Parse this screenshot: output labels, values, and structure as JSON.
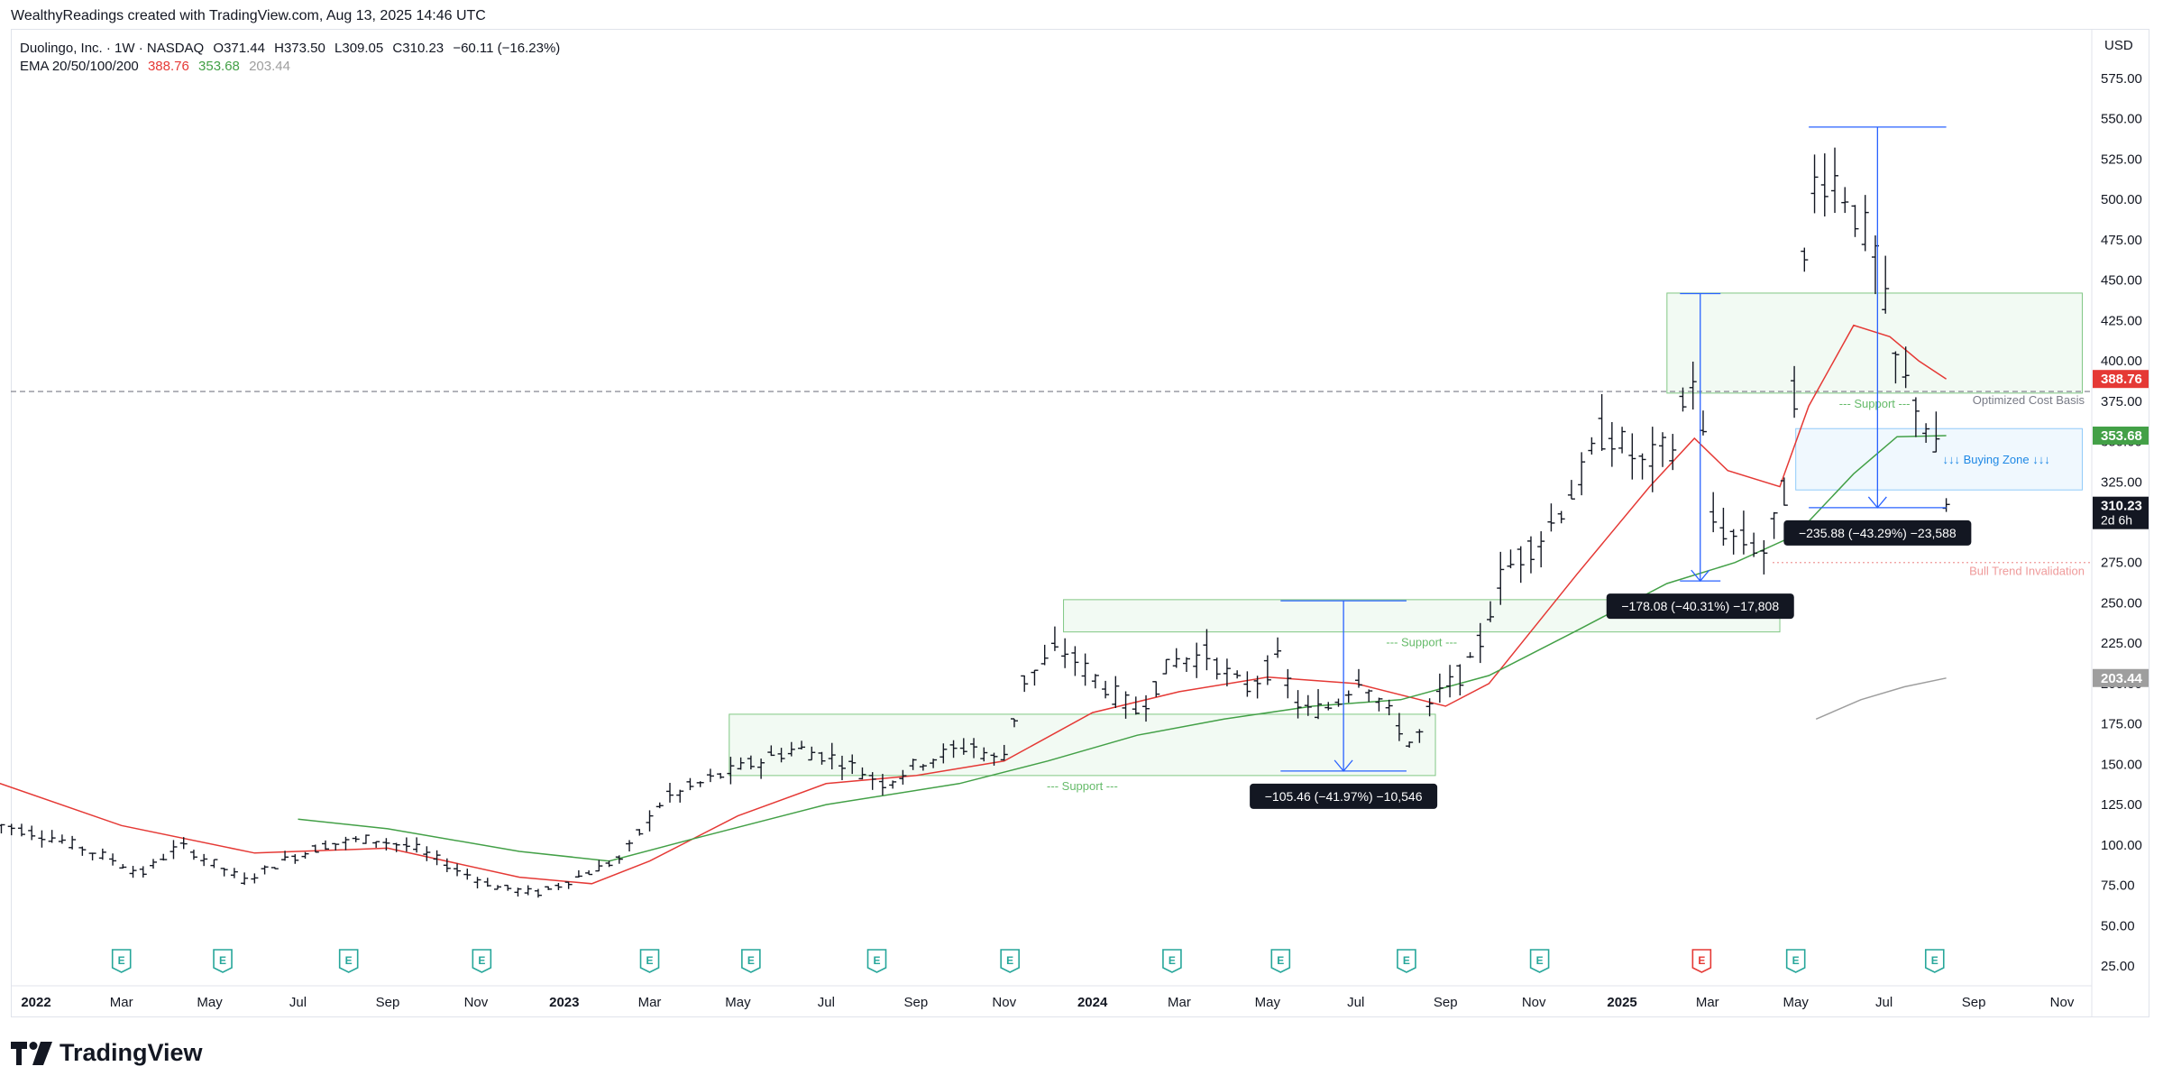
{
  "header": {
    "attribution": "WealthyReadings created with TradingView.com, Aug 13, 2025 14:46 UTC"
  },
  "legend": {
    "symbol_line": "Duolingo, Inc. · 1W · NASDAQ",
    "open": "O371.44",
    "high": "H373.50",
    "low": "L309.05",
    "close": "C310.23",
    "change": "−60.11 (−16.23%)",
    "ema_label": "EMA 20/50/100/200",
    "ema_values": [
      "388.76",
      "353.68",
      "203.44"
    ]
  },
  "currency": "USD",
  "footer": {
    "brand": "TradingView"
  },
  "colors": {
    "ema20": "#e53935",
    "ema50": "#43a047",
    "ema100": "#9e9e9e",
    "measure": "#2962ff",
    "zone_green": "#e8f5e9",
    "zone_blue": "#e3f2fd"
  },
  "chart_data": {
    "type": "ohlc-bar",
    "title": "Duolingo, Inc. · 1W · NASDAQ",
    "ylim": [
      25,
      585
    ],
    "y_ticks": [
      "575.00",
      "550.00",
      "525.00",
      "500.00",
      "475.00",
      "450.00",
      "425.00",
      "400.00",
      "375.00",
      "350.00",
      "325.00",
      "300.00",
      "275.00",
      "250.00",
      "225.00",
      "200.00",
      "175.00",
      "150.00",
      "125.00",
      "100.00",
      "75.00",
      "50.00",
      "25.00"
    ],
    "y_tick_values": [
      575,
      550,
      525,
      500,
      475,
      450,
      425,
      400,
      375,
      350,
      325,
      300,
      275,
      250,
      225,
      200,
      175,
      150,
      125,
      100,
      75,
      50,
      25
    ],
    "x_labels": [
      "2022",
      "Mar",
      "May",
      "Jul",
      "Sep",
      "Nov",
      "2023",
      "Mar",
      "May",
      "Jul",
      "Sep",
      "Nov",
      "2024",
      "Mar",
      "May",
      "Jul",
      "Sep",
      "Nov",
      "2025",
      "Mar",
      "May",
      "Jul",
      "Sep",
      "Nov"
    ],
    "x_label_dates": [
      "2022-01-01",
      "2022-03-01",
      "2022-05-01",
      "2022-07-01",
      "2022-09-01",
      "2022-11-01",
      "2023-01-01",
      "2023-03-01",
      "2023-05-01",
      "2023-07-01",
      "2023-09-01",
      "2023-11-01",
      "2024-01-01",
      "2024-03-01",
      "2024-05-01",
      "2024-07-01",
      "2024-09-01",
      "2024-11-01",
      "2025-01-01",
      "2025-03-01",
      "2025-05-01",
      "2025-07-01",
      "2025-09-01",
      "2025-11-01"
    ],
    "price_anchors": [
      [
        "2021-12-01",
        114
      ],
      [
        "2022-01-15",
        104
      ],
      [
        "2022-02-20",
        92
      ],
      [
        "2022-03-15",
        82
      ],
      [
        "2022-04-10",
        100
      ],
      [
        "2022-05-05",
        88
      ],
      [
        "2022-05-25",
        78
      ],
      [
        "2022-06-20",
        90
      ],
      [
        "2022-07-20",
        100
      ],
      [
        "2022-08-20",
        104
      ],
      [
        "2022-09-20",
        98
      ],
      [
        "2022-10-20",
        84
      ],
      [
        "2022-11-15",
        74
      ],
      [
        "2022-12-15",
        70
      ],
      [
        "2023-01-10",
        80
      ],
      [
        "2023-02-10",
        92
      ],
      [
        "2023-03-10",
        128
      ],
      [
        "2023-04-10",
        140
      ],
      [
        "2023-05-10",
        150
      ],
      [
        "2023-06-10",
        160
      ],
      [
        "2023-07-10",
        153
      ],
      [
        "2023-08-10",
        138
      ],
      [
        "2023-09-05",
        152
      ],
      [
        "2023-10-10",
        162
      ],
      [
        "2023-10-30",
        150
      ],
      [
        "2023-11-15",
        202
      ],
      [
        "2023-12-10",
        222
      ],
      [
        "2024-01-10",
        198
      ],
      [
        "2024-02-01",
        182
      ],
      [
        "2024-02-25",
        214
      ],
      [
        "2024-03-20",
        218
      ],
      [
        "2024-04-15",
        196
      ],
      [
        "2024-05-08",
        214
      ],
      [
        "2024-05-25",
        182
      ],
      [
        "2024-06-15",
        186
      ],
      [
        "2024-07-05",
        206
      ],
      [
        "2024-07-25",
        180
      ],
      [
        "2024-08-10",
        160
      ],
      [
        "2024-08-25",
        192
      ],
      [
        "2024-09-20",
        212
      ],
      [
        "2024-10-10",
        268
      ],
      [
        "2024-11-10",
        295
      ],
      [
        "2024-12-05",
        330
      ],
      [
        "2024-12-20",
        358
      ],
      [
        "2025-01-15",
        335
      ],
      [
        "2025-02-05",
        348
      ],
      [
        "2025-02-20",
        395
      ],
      [
        "2025-03-05",
        300
      ],
      [
        "2025-03-20",
        290
      ],
      [
        "2025-04-10",
        282
      ],
      [
        "2025-04-25",
        322
      ],
      [
        "2025-05-05",
        440
      ],
      [
        "2025-05-15",
        518
      ],
      [
        "2025-06-01",
        512
      ],
      [
        "2025-06-25",
        465
      ],
      [
        "2025-07-10",
        395
      ],
      [
        "2025-07-25",
        372
      ],
      [
        "2025-08-05",
        348
      ],
      [
        "2025-08-13",
        310.23
      ]
    ],
    "ema_series": [
      {
        "name": "EMA 20",
        "color": "#e53935",
        "points": [
          [
            "2021-12-01",
            140
          ],
          [
            "2022-03-01",
            112
          ],
          [
            "2022-06-01",
            95
          ],
          [
            "2022-09-01",
            98
          ],
          [
            "2022-12-01",
            80
          ],
          [
            "2023-01-20",
            76
          ],
          [
            "2023-03-01",
            90
          ],
          [
            "2023-05-01",
            118
          ],
          [
            "2023-07-01",
            138
          ],
          [
            "2023-09-01",
            143
          ],
          [
            "2023-11-01",
            152
          ],
          [
            "2024-01-01",
            182
          ],
          [
            "2024-03-01",
            195
          ],
          [
            "2024-05-01",
            204
          ],
          [
            "2024-07-01",
            200
          ],
          [
            "2024-09-01",
            186
          ],
          [
            "2024-10-01",
            200
          ],
          [
            "2024-12-01",
            268
          ],
          [
            "2025-01-20",
            322
          ],
          [
            "2025-02-20",
            352
          ],
          [
            "2025-03-15",
            332
          ],
          [
            "2025-04-20",
            322
          ],
          [
            "2025-05-10",
            372
          ],
          [
            "2025-06-10",
            422
          ],
          [
            "2025-07-05",
            415
          ],
          [
            "2025-07-25",
            400
          ],
          [
            "2025-08-13",
            388.76
          ]
        ]
      },
      {
        "name": "EMA 50",
        "color": "#43a047",
        "points": [
          [
            "2022-07-01",
            116
          ],
          [
            "2022-09-01",
            110
          ],
          [
            "2022-12-01",
            96
          ],
          [
            "2023-02-01",
            90
          ],
          [
            "2023-04-01",
            104
          ],
          [
            "2023-07-01",
            125
          ],
          [
            "2023-10-01",
            138
          ],
          [
            "2023-12-01",
            152
          ],
          [
            "2024-02-01",
            168
          ],
          [
            "2024-04-01",
            178
          ],
          [
            "2024-06-01",
            186
          ],
          [
            "2024-08-01",
            190
          ],
          [
            "2024-10-01",
            205
          ],
          [
            "2024-12-01",
            233
          ],
          [
            "2025-02-01",
            262
          ],
          [
            "2025-03-20",
            275
          ],
          [
            "2025-05-01",
            292
          ],
          [
            "2025-06-10",
            330
          ],
          [
            "2025-07-10",
            353
          ],
          [
            "2025-08-13",
            353.68
          ]
        ]
      },
      {
        "name": "EMA 100",
        "color": "#9e9e9e",
        "points": [
          [
            "2025-05-15",
            178
          ],
          [
            "2025-06-15",
            190
          ],
          [
            "2025-07-15",
            198
          ],
          [
            "2025-08-13",
            203.44
          ]
        ]
      }
    ],
    "zones": [
      {
        "label": "--- Support ---",
        "from": "2023-04-25",
        "to": "2024-08-25",
        "low": 143,
        "high": 181
      },
      {
        "label": "--- Support ---",
        "from": "2023-12-12",
        "to": "2025-04-20",
        "low": 232,
        "high": 252
      },
      {
        "label": "--- Support ---",
        "from": "2025-02-01",
        "to": "2025-11-15",
        "low": 380,
        "high": 442
      },
      {
        "label": "↓↓↓ Buying Zone ↓↓↓",
        "from": "2025-05-01",
        "to": "2025-11-15",
        "low": 320,
        "high": 358
      }
    ],
    "measures": [
      {
        "label": "−105.46 (−41.97%) −10,546",
        "from": "2024-05-10",
        "to": "2024-08-05",
        "high": 251.3,
        "low": 145.8
      },
      {
        "label": "−178.08 (−40.31%) −17,808",
        "from": "2025-02-10",
        "to": "2025-03-10",
        "high": 441.7,
        "low": 263.6
      },
      {
        "label": "−235.88 (−43.29%) −23,588",
        "from": "2025-05-10",
        "to": "2025-08-13",
        "high": 544.9,
        "low": 309.0
      }
    ],
    "hlines": [
      {
        "label": "Optimized Cost Basis",
        "value": 381,
        "style": "dashed",
        "color": "#787b86"
      },
      {
        "label": "Bull Trend Invalidation",
        "value": 275,
        "style": "dotted",
        "color": "#ef9a9a"
      }
    ],
    "price_tags": [
      {
        "text": "388.76",
        "value": 388.76,
        "bg": "#e53935",
        "fg": "#ffffff"
      },
      {
        "text": "353.68",
        "value": 353.68,
        "bg": "#43a047",
        "fg": "#ffffff"
      },
      {
        "text": "310.23",
        "sub": "2d 6h",
        "value": 310.23,
        "bg": "#131722",
        "fg": "#ffffff"
      },
      {
        "text": "203.44",
        "value": 203.44,
        "bg": "#9e9e9e",
        "fg": "#ffffff"
      }
    ],
    "earnings_dates": [
      "2022-03-01",
      "2022-05-10",
      "2022-08-05",
      "2022-11-05",
      "2023-03-01",
      "2023-05-10",
      "2023-08-05",
      "2023-11-05",
      "2024-02-25",
      "2024-05-10",
      "2024-08-05",
      "2024-11-05",
      "2025-02-25",
      "2025-05-01",
      "2025-08-05"
    ],
    "grid": false
  }
}
